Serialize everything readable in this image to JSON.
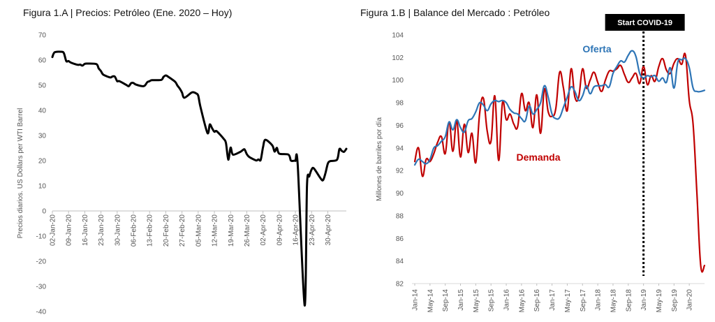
{
  "chart_data": [
    {
      "type": "line",
      "title": "Figura 1.A | Precios: Petróleo",
      "subtitle": "(Ene. 2020 – Hoy)",
      "xlabel": "",
      "ylabel": "Precios diarios. US Dollars per WTI Barrel",
      "ylim": [
        -40,
        70
      ],
      "yticks": [
        70,
        60,
        50,
        40,
        30,
        20,
        10,
        0,
        -10,
        -20,
        -30,
        -40
      ],
      "xlim": [
        "2020-01-02",
        "2020-05-08"
      ],
      "xticks": [
        "02-Jan-20",
        "09-Jan-20",
        "16-Jan-20",
        "23-Jan-20",
        "30-Jan-20",
        "06-Feb-20",
        "13-Feb-20",
        "20-Feb-20",
        "27-Feb-20",
        "05-Mar-20",
        "12-Mar-20",
        "19-Mar-20",
        "26-Mar-20",
        "02-Apr-20",
        "09-Apr-20",
        "16-Apr-20",
        "23-Apr-20",
        "30-Apr-20"
      ],
      "grid": false,
      "series": [
        {
          "name": "",
          "color": "#000000",
          "x": [
            "2020-01-02",
            "2020-01-03",
            "2020-01-06",
            "2020-01-07",
            "2020-01-08",
            "2020-01-09",
            "2020-01-10",
            "2020-01-13",
            "2020-01-14",
            "2020-01-15",
            "2020-01-16",
            "2020-01-17",
            "2020-01-21",
            "2020-01-22",
            "2020-01-23",
            "2020-01-24",
            "2020-01-27",
            "2020-01-28",
            "2020-01-29",
            "2020-01-30",
            "2020-01-31",
            "2020-02-03",
            "2020-02-04",
            "2020-02-05",
            "2020-02-06",
            "2020-02-07",
            "2020-02-10",
            "2020-02-11",
            "2020-02-12",
            "2020-02-13",
            "2020-02-14",
            "2020-02-18",
            "2020-02-19",
            "2020-02-20",
            "2020-02-21",
            "2020-02-24",
            "2020-02-25",
            "2020-02-26",
            "2020-02-27",
            "2020-02-28",
            "2020-03-02",
            "2020-03-03",
            "2020-03-04",
            "2020-03-05",
            "2020-03-06",
            "2020-03-09",
            "2020-03-10",
            "2020-03-11",
            "2020-03-12",
            "2020-03-13",
            "2020-03-16",
            "2020-03-17",
            "2020-03-18",
            "2020-03-19",
            "2020-03-20",
            "2020-03-23",
            "2020-03-24",
            "2020-03-25",
            "2020-03-26",
            "2020-03-27",
            "2020-03-30",
            "2020-03-31",
            "2020-04-01",
            "2020-04-02",
            "2020-04-03",
            "2020-04-06",
            "2020-04-07",
            "2020-04-08",
            "2020-04-09",
            "2020-04-13",
            "2020-04-14",
            "2020-04-15",
            "2020-04-16",
            "2020-04-17",
            "2020-04-20",
            "2020-04-21",
            "2020-04-22",
            "2020-04-23",
            "2020-04-24",
            "2020-04-27",
            "2020-04-28",
            "2020-04-29",
            "2020-04-30",
            "2020-05-01",
            "2020-05-04",
            "2020-05-05",
            "2020-05-06",
            "2020-05-07",
            "2020-05-08"
          ],
          "y": [
            61.2,
            63.1,
            63.3,
            62.7,
            59.6,
            59.6,
            59.0,
            58.1,
            58.2,
            57.8,
            58.5,
            58.6,
            58.4,
            56.7,
            55.6,
            54.2,
            53.1,
            53.5,
            53.4,
            51.6,
            51.6,
            50.1,
            49.6,
            50.8,
            50.9,
            50.3,
            49.6,
            49.9,
            51.2,
            51.6,
            52.0,
            52.1,
            53.3,
            53.9,
            53.4,
            51.4,
            49.9,
            48.7,
            47.1,
            45.0,
            47.0,
            47.2,
            46.8,
            45.9,
            41.3,
            31.0,
            34.4,
            32.9,
            31.5,
            31.7,
            28.7,
            27.0,
            20.4,
            25.2,
            22.4,
            23.4,
            24.0,
            24.5,
            22.6,
            21.5,
            20.1,
            20.5,
            20.3,
            25.3,
            28.3,
            26.1,
            23.6,
            25.1,
            22.8,
            22.4,
            20.1,
            19.9,
            19.9,
            18.3,
            -37.6,
            10.0,
            13.8,
            16.5,
            16.9,
            12.8,
            12.3,
            15.1,
            18.8,
            19.8,
            20.4,
            24.6,
            23.9,
            23.5,
            24.7
          ]
        }
      ]
    },
    {
      "type": "line",
      "title": "Figura 1.B | Balance del Mercado",
      "subtitle": ": Petróleo",
      "xlabel": "",
      "ylabel": "Millones de barriles por día",
      "ylim": [
        82,
        104
      ],
      "yticks": [
        104,
        102,
        100,
        98,
        96,
        94,
        92,
        90,
        88,
        86,
        84,
        82
      ],
      "xlim": [
        "2014-01",
        "2020-05"
      ],
      "xticks": [
        "Jan-14",
        "May-14",
        "Sep-14",
        "Jan-15",
        "May-15",
        "Sep-15",
        "Jan-16",
        "May-16",
        "Sep-16",
        "Jan-17",
        "May-17",
        "Sep-17",
        "Jan-18",
        "May-18",
        "Sep-18",
        "Jan-19",
        "May-19",
        "Sep-19",
        "Jan-20"
      ],
      "grid": false,
      "annotations": [
        {
          "text": "Start COVID-19",
          "x": "2019-01",
          "style": "black box, dotted vertical line"
        },
        {
          "text": "Oferta",
          "color": "#2e75b6"
        },
        {
          "text": "Demanda",
          "color": "#c00000"
        }
      ],
      "series": [
        {
          "name": "Oferta",
          "color": "#2e75b6",
          "x": [
            "2014-01",
            "2014-02",
            "2014-03",
            "2014-04",
            "2014-05",
            "2014-06",
            "2014-07",
            "2014-08",
            "2014-09",
            "2014-10",
            "2014-11",
            "2014-12",
            "2015-01",
            "2015-02",
            "2015-03",
            "2015-04",
            "2015-05",
            "2015-06",
            "2015-07",
            "2015-08",
            "2015-09",
            "2015-10",
            "2015-11",
            "2015-12",
            "2016-01",
            "2016-02",
            "2016-03",
            "2016-04",
            "2016-05",
            "2016-06",
            "2016-07",
            "2016-08",
            "2016-09",
            "2016-10",
            "2016-11",
            "2016-12",
            "2017-01",
            "2017-02",
            "2017-03",
            "2017-04",
            "2017-05",
            "2017-06",
            "2017-07",
            "2017-08",
            "2017-09",
            "2017-10",
            "2017-11",
            "2017-12",
            "2018-01",
            "2018-02",
            "2018-03",
            "2018-04",
            "2018-05",
            "2018-06",
            "2018-07",
            "2018-08",
            "2018-09",
            "2018-10",
            "2018-11",
            "2018-12",
            "2019-01",
            "2019-02",
            "2019-03",
            "2019-04",
            "2019-05",
            "2019-06",
            "2019-07",
            "2019-08",
            "2019-09",
            "2019-10",
            "2019-11",
            "2019-12",
            "2020-01",
            "2020-02",
            "2020-03",
            "2020-04",
            "2020-05"
          ],
          "y": [
            92.5,
            93.0,
            92.8,
            92.6,
            93.0,
            94.0,
            94.2,
            94.6,
            95.0,
            96.3,
            95.6,
            96.5,
            95.8,
            95.4,
            96.4,
            96.6,
            97.2,
            98.0,
            97.8,
            97.3,
            97.9,
            98.2,
            98.1,
            98.2,
            98.0,
            97.4,
            97.1,
            97.0,
            96.6,
            96.4,
            97.7,
            97.0,
            97.4,
            98.0,
            99.5,
            98.5,
            97.0,
            96.6,
            96.7,
            97.6,
            98.5,
            99.4,
            99.0,
            98.2,
            98.6,
            99.5,
            98.8,
            99.4,
            99.5,
            99.5,
            99.6,
            99.4,
            100.6,
            101.2,
            101.7,
            101.6,
            102.2,
            102.6,
            102.1,
            100.6,
            100.2,
            100.4,
            100.3,
            100.4,
            99.9,
            100.2,
            99.8,
            101.1,
            99.3,
            101.6,
            101.8,
            101.9,
            101.1,
            99.3,
            99.0,
            99.0,
            99.1
          ]
        },
        {
          "name": "Demanda",
          "color": "#c00000",
          "x": [
            "2014-01",
            "2014-02",
            "2014-03",
            "2014-04",
            "2014-05",
            "2014-06",
            "2014-07",
            "2014-08",
            "2014-09",
            "2014-10",
            "2014-11",
            "2014-12",
            "2015-01",
            "2015-02",
            "2015-03",
            "2015-04",
            "2015-05",
            "2015-06",
            "2015-07",
            "2015-08",
            "2015-09",
            "2015-10",
            "2015-11",
            "2015-12",
            "2016-01",
            "2016-02",
            "2016-03",
            "2016-04",
            "2016-05",
            "2016-06",
            "2016-07",
            "2016-08",
            "2016-09",
            "2016-10",
            "2016-11",
            "2016-12",
            "2017-01",
            "2017-02",
            "2017-03",
            "2017-04",
            "2017-05",
            "2017-06",
            "2017-07",
            "2017-08",
            "2017-09",
            "2017-10",
            "2017-11",
            "2017-12",
            "2018-01",
            "2018-02",
            "2018-03",
            "2018-04",
            "2018-05",
            "2018-06",
            "2018-07",
            "2018-08",
            "2018-09",
            "2018-10",
            "2018-11",
            "2018-12",
            "2019-01",
            "2019-02",
            "2019-03",
            "2019-04",
            "2019-05",
            "2019-06",
            "2019-07",
            "2019-08",
            "2019-09",
            "2019-10",
            "2019-11",
            "2019-12",
            "2020-01",
            "2020-02",
            "2020-03",
            "2020-04",
            "2020-05"
          ],
          "y": [
            92.8,
            94.0,
            91.5,
            93.0,
            92.8,
            93.5,
            94.5,
            95.0,
            93.5,
            96.3,
            93.7,
            96.4,
            93.2,
            96.1,
            93.6,
            95.3,
            92.7,
            97.0,
            98.4,
            95.5,
            94.6,
            98.6,
            92.9,
            98.0,
            96.5,
            97.0,
            96.1,
            95.9,
            98.8,
            97.3,
            98.0,
            95.8,
            98.7,
            95.3,
            99.2,
            97.2,
            96.8,
            97.5,
            100.7,
            99.3,
            97.3,
            101.0,
            98.5,
            98.5,
            101.0,
            99.3,
            100.0,
            100.7,
            99.8,
            99.0,
            100.0,
            100.8,
            100.8,
            101.0,
            101.3,
            100.5,
            99.8,
            100.2,
            100.6,
            99.7,
            101.2,
            99.6,
            100.4,
            99.9,
            101.2,
            101.9,
            100.9,
            100.6,
            101.5,
            101.9,
            101.4,
            102.2,
            98.2,
            96.1,
            90.0,
            83.6,
            83.6
          ]
        }
      ]
    }
  ]
}
